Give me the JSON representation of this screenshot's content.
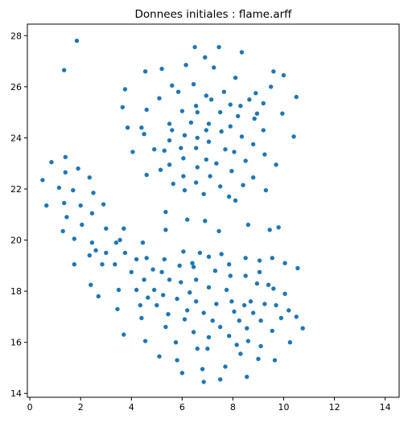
{
  "chart_data": {
    "type": "scatter",
    "title": "Donnees initiales : flame.arff",
    "xlabel": "",
    "ylabel": "",
    "xlim": [
      -0.1,
      14.55
    ],
    "ylim": [
      13.85,
      28.45
    ],
    "xticks": [
      0,
      2,
      4,
      6,
      8,
      10,
      12,
      14
    ],
    "yticks": [
      14,
      16,
      18,
      20,
      22,
      24,
      26,
      28
    ],
    "grid": false,
    "legend": "none",
    "point_color": "#1f77b4",
    "points": [
      [
        1.85,
        27.8
      ],
      [
        1.35,
        26.65
      ],
      [
        6.5,
        27.55
      ],
      [
        7.45,
        27.55
      ],
      [
        8.35,
        27.35
      ],
      [
        6.9,
        27.15
      ],
      [
        6.15,
        26.85
      ],
      [
        5.2,
        26.7
      ],
      [
        7.25,
        26.75
      ],
      [
        9.6,
        26.6
      ],
      [
        4.55,
        26.6
      ],
      [
        10.0,
        26.45
      ],
      [
        8.1,
        26.35
      ],
      [
        6.45,
        26.1
      ],
      [
        5.6,
        26.05
      ],
      [
        3.75,
        25.9
      ],
      [
        9.5,
        26.0
      ],
      [
        8.9,
        25.75
      ],
      [
        7.65,
        25.8
      ],
      [
        6.95,
        25.65
      ],
      [
        5.85,
        25.8
      ],
      [
        10.5,
        25.6
      ],
      [
        7.15,
        25.5
      ],
      [
        8.65,
        25.5
      ],
      [
        9.2,
        25.35
      ],
      [
        6.55,
        25.25
      ],
      [
        5.1,
        25.55
      ],
      [
        3.65,
        25.2
      ],
      [
        4.6,
        25.1
      ],
      [
        6.0,
        25.05
      ],
      [
        7.9,
        25.3
      ],
      [
        8.3,
        25.25
      ],
      [
        6.6,
        25.0
      ],
      [
        7.5,
        25.0
      ],
      [
        9.95,
        24.95
      ],
      [
        8.95,
        24.95
      ],
      [
        8.2,
        24.85
      ],
      [
        6.35,
        24.6
      ],
      [
        7.05,
        24.55
      ],
      [
        5.5,
        24.55
      ],
      [
        4.4,
        24.4
      ],
      [
        3.85,
        24.4
      ],
      [
        7.9,
        24.45
      ],
      [
        8.85,
        24.75
      ],
      [
        6.95,
        24.3
      ],
      [
        5.6,
        24.3
      ],
      [
        7.55,
        24.25
      ],
      [
        9.2,
        24.3
      ],
      [
        4.5,
        24.15
      ],
      [
        10.4,
        24.05
      ],
      [
        6.1,
        24.1
      ],
      [
        6.6,
        24.0
      ],
      [
        8.35,
        24.05
      ],
      [
        5.5,
        23.9
      ],
      [
        7.05,
        23.85
      ],
      [
        8.8,
        23.75
      ],
      [
        5.95,
        23.6
      ],
      [
        6.55,
        23.6
      ],
      [
        7.7,
        23.55
      ],
      [
        4.9,
        23.55
      ],
      [
        4.05,
        23.45
      ],
      [
        5.3,
        23.5
      ],
      [
        8.05,
        23.45
      ],
      [
        9.25,
        23.35
      ],
      [
        6.05,
        23.2
      ],
      [
        6.95,
        23.15
      ],
      [
        8.5,
        23.1
      ],
      [
        7.35,
        23.0
      ],
      [
        9.7,
        22.95
      ],
      [
        5.5,
        22.95
      ],
      [
        6.6,
        22.85
      ],
      [
        5.15,
        22.75
      ],
      [
        7.95,
        22.7
      ],
      [
        4.6,
        22.55
      ],
      [
        6.05,
        22.5
      ],
      [
        7.1,
        22.5
      ],
      [
        8.8,
        22.45
      ],
      [
        6.55,
        22.25
      ],
      [
        5.65,
        22.2
      ],
      [
        8.4,
        22.15
      ],
      [
        7.5,
        22.1
      ],
      [
        9.3,
        21.95
      ],
      [
        6.1,
        21.95
      ],
      [
        6.85,
        21.8
      ],
      [
        7.85,
        21.7
      ],
      [
        8.1,
        21.55
      ],
      [
        0.5,
        22.35
      ],
      [
        0.85,
        23.05
      ],
      [
        1.4,
        23.25
      ],
      [
        1.15,
        22.05
      ],
      [
        1.9,
        22.8
      ],
      [
        1.4,
        22.65
      ],
      [
        2.35,
        22.45
      ],
      [
        1.7,
        21.95
      ],
      [
        2.5,
        21.85
      ],
      [
        1.35,
        21.45
      ],
      [
        2.0,
        21.35
      ],
      [
        0.65,
        21.35
      ],
      [
        2.9,
        21.4
      ],
      [
        1.45,
        20.9
      ],
      [
        2.45,
        21.05
      ],
      [
        2.05,
        20.6
      ],
      [
        1.3,
        20.35
      ],
      [
        3.0,
        20.45
      ],
      [
        3.7,
        20.45
      ],
      [
        1.75,
        20.05
      ],
      [
        2.45,
        19.9
      ],
      [
        3.55,
        20.0
      ],
      [
        2.6,
        19.6
      ],
      [
        4.45,
        19.9
      ],
      [
        3.4,
        19.9
      ],
      [
        2.35,
        19.4
      ],
      [
        3.0,
        19.5
      ],
      [
        3.75,
        19.5
      ],
      [
        4.2,
        19.25
      ],
      [
        2.85,
        19.05
      ],
      [
        3.35,
        19.05
      ],
      [
        1.75,
        19.05
      ],
      [
        4.0,
        18.75
      ],
      [
        2.4,
        18.25
      ],
      [
        3.5,
        18.05
      ],
      [
        2.7,
        17.8
      ],
      [
        3.45,
        17.3
      ],
      [
        3.7,
        16.3
      ],
      [
        4.2,
        18.05
      ],
      [
        4.5,
        18.45
      ],
      [
        4.85,
        18.85
      ],
      [
        4.35,
        17.45
      ],
      [
        4.65,
        17.75
      ],
      [
        4.9,
        18.05
      ],
      [
        5.5,
        18.45
      ],
      [
        4.4,
        16.95
      ],
      [
        5.0,
        17.45
      ],
      [
        5.25,
        17.85
      ],
      [
        5.45,
        17.1
      ],
      [
        5.95,
        18.35
      ],
      [
        5.35,
        16.6
      ],
      [
        5.8,
        17.7
      ],
      [
        4.55,
        16.05
      ],
      [
        6.1,
        16.9
      ],
      [
        5.75,
        16.0
      ],
      [
        6.2,
        17.25
      ],
      [
        6.3,
        17.95
      ],
      [
        6.55,
        18.45
      ],
      [
        6.45,
        16.4
      ],
      [
        6.55,
        17.6
      ],
      [
        7.05,
        18.15
      ],
      [
        6.85,
        17.15
      ],
      [
        6.6,
        15.75
      ],
      [
        7.05,
        16.2
      ],
      [
        7.2,
        16.85
      ],
      [
        7.35,
        17.5
      ],
      [
        7.75,
        18.05
      ],
      [
        7.5,
        16.6
      ],
      [
        7.0,
        15.75
      ],
      [
        7.95,
        17.6
      ],
      [
        7.85,
        16.25
      ],
      [
        8.05,
        17.2
      ],
      [
        8.25,
        16.85
      ],
      [
        8.45,
        17.45
      ],
      [
        8.15,
        15.9
      ],
      [
        8.7,
        17.6
      ],
      [
        8.55,
        16.55
      ],
      [
        8.6,
        16.05
      ],
      [
        8.8,
        17.15
      ],
      [
        9.1,
        16.85
      ],
      [
        9.25,
        17.5
      ],
      [
        9.6,
        18.1
      ],
      [
        8.95,
        18.3
      ],
      [
        9.7,
        17.45
      ],
      [
        9.9,
        16.95
      ],
      [
        9.55,
        16.45
      ],
      [
        10.2,
        17.25
      ],
      [
        10.05,
        17.9
      ],
      [
        10.5,
        17.0
      ],
      [
        10.75,
        16.55
      ],
      [
        10.25,
        16.0
      ],
      [
        9.1,
        15.85
      ],
      [
        9.0,
        15.35
      ],
      [
        9.65,
        15.3
      ],
      [
        8.3,
        15.55
      ],
      [
        7.7,
        15.05
      ],
      [
        7.5,
        14.55
      ],
      [
        6.85,
        14.45
      ],
      [
        6.8,
        14.95
      ],
      [
        5.8,
        15.3
      ],
      [
        6.0,
        14.8
      ],
      [
        5.1,
        15.45
      ],
      [
        8.55,
        14.65
      ],
      [
        5.35,
        21.1
      ],
      [
        6.2,
        20.8
      ],
      [
        6.9,
        20.75
      ],
      [
        5.35,
        20.4
      ],
      [
        7.45,
        20.35
      ],
      [
        8.6,
        20.6
      ],
      [
        9.45,
        20.4
      ],
      [
        9.8,
        20.5
      ],
      [
        5.3,
        19.25
      ],
      [
        4.6,
        19.3
      ],
      [
        6.05,
        19.55
      ],
      [
        6.7,
        19.5
      ],
      [
        7.55,
        19.45
      ],
      [
        6.4,
        19.1
      ],
      [
        7.05,
        19.35
      ],
      [
        7.85,
        19.05
      ],
      [
        8.5,
        19.3
      ],
      [
        9.05,
        19.2
      ],
      [
        9.55,
        19.3
      ],
      [
        10.05,
        19.1
      ],
      [
        7.3,
        18.8
      ],
      [
        7.9,
        18.6
      ],
      [
        8.5,
        18.6
      ],
      [
        9.05,
        18.75
      ],
      [
        9.4,
        18.25
      ],
      [
        10.55,
        18.9
      ],
      [
        6.45,
        18.95
      ],
      [
        5.9,
        19.0
      ],
      [
        5.2,
        18.75
      ]
    ]
  }
}
